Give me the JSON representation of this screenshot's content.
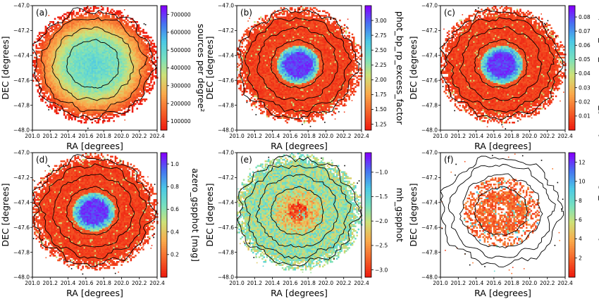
{
  "chart_data": [
    {
      "type": "heatmap",
      "panel_label": "(a)",
      "xlabel": "RA [degrees]",
      "ylabel": "DEC [degrees]",
      "cbar_label": "sources per degree²",
      "x_ticks": [
        "201.0",
        "201.2",
        "201.4",
        "201.6",
        "201.8",
        "202.0",
        "202.2",
        "202.4"
      ],
      "y_ticks": [
        "−47.0",
        "−47.2",
        "−47.4",
        "−47.6",
        "−47.8",
        "−48.0"
      ],
      "cbar_ticks": [
        "100000",
        "200000",
        "300000",
        "400000",
        "500000",
        "600000",
        "700000"
      ],
      "xlim": [
        201.0,
        202.4
      ],
      "ylim": [
        -48.0,
        -47.0
      ],
      "cbar_range": [
        50000,
        750000
      ],
      "colormap": "rainbow",
      "center": [
        201.68,
        -47.47
      ],
      "profile": "decreasing-outward",
      "contours": true
    },
    {
      "type": "heatmap",
      "panel_label": "(b)",
      "xlabel": "RA [degrees]",
      "ylabel": "DEC [degrees]",
      "cbar_label": "phot_bp_rp_excess_factor",
      "x_ticks": [
        "201.0",
        "201.2",
        "201.4",
        "201.6",
        "201.8",
        "202.0",
        "202.2",
        "202.4"
      ],
      "y_ticks": [
        "−47.0",
        "−47.2",
        "−47.4",
        "−47.6",
        "−47.8",
        "−48.0"
      ],
      "cbar_ticks": [
        "1.25",
        "1.50",
        "1.75",
        "2.00",
        "2.25",
        "2.50",
        "2.75",
        "3.00"
      ],
      "xlim": [
        201.0,
        202.4
      ],
      "ylim": [
        -48.0,
        -47.0
      ],
      "cbar_range": [
        1.15,
        3.25
      ],
      "colormap": "rainbow",
      "center": [
        201.68,
        -47.47
      ],
      "profile": "central-peak",
      "contours": true
    },
    {
      "type": "heatmap",
      "panel_label": "(c)",
      "xlabel": "RA [degrees]",
      "ylabel": "DEC [degrees]",
      "cbar_label": "classprob_dsc_combmod_galaxy",
      "x_ticks": [
        "201.0",
        "201.2",
        "201.4",
        "201.6",
        "201.8",
        "202.0",
        "202.2",
        "202.4"
      ],
      "y_ticks": [
        "−47.0",
        "−47.2",
        "−47.4",
        "−47.6",
        "−47.8",
        "−48.0"
      ],
      "cbar_ticks": [
        "0.01",
        "0.02",
        "0.03",
        "0.04",
        "0.05",
        "0.06",
        "0.07",
        "0.08"
      ],
      "xlim": [
        201.0,
        202.4
      ],
      "ylim": [
        -48.0,
        -47.0
      ],
      "cbar_range": [
        0.0,
        0.088
      ],
      "colormap": "rainbow",
      "center": [
        201.68,
        -47.47
      ],
      "profile": "central-peak",
      "contours": true
    },
    {
      "type": "heatmap",
      "panel_label": "(d)",
      "xlabel": "RA [degrees]",
      "ylabel": "DEC [degrees]",
      "cbar_label": "azero_gspphot [mag]",
      "x_ticks": [
        "201.0",
        "201.2",
        "201.4",
        "201.6",
        "201.8",
        "202.0",
        "202.2",
        "202.4"
      ],
      "y_ticks": [
        "−47.0",
        "−47.2",
        "−47.4",
        "−47.6",
        "−47.8",
        "−48.0"
      ],
      "cbar_ticks": [
        "0.2",
        "0.4",
        "0.6",
        "0.8",
        "1.0"
      ],
      "xlim": [
        201.0,
        202.4
      ],
      "ylim": [
        -48.0,
        -47.0
      ],
      "cbar_range": [
        0.0,
        1.1
      ],
      "colormap": "rainbow",
      "center": [
        201.68,
        -47.47
      ],
      "profile": "central-peak",
      "contours": true
    },
    {
      "type": "heatmap",
      "panel_label": "(e)",
      "xlabel": "RA [degrees]",
      "ylabel": "DEC [degrees]",
      "cbar_label": "mh_gspphot",
      "x_ticks": [
        "201.0",
        "201.2",
        "201.4",
        "201.6",
        "201.8",
        "202.0",
        "202.2",
        "202.4"
      ],
      "y_ticks": [
        "−47.0",
        "−47.2",
        "−47.4",
        "−47.6",
        "−47.8",
        "−48.0"
      ],
      "cbar_ticks": [
        "−3.0",
        "−2.5",
        "−2.0",
        "−1.5",
        "−1.0"
      ],
      "xlim": [
        201.0,
        202.4
      ],
      "ylim": [
        -48.0,
        -47.0
      ],
      "cbar_range": [
        -3.15,
        -0.6
      ],
      "colormap": "rainbow",
      "center": [
        201.68,
        -47.47
      ],
      "profile": "low-center-high-outskirts",
      "contours": true
    },
    {
      "type": "heatmap",
      "panel_label": "(f)",
      "xlabel": "RA [degrees]",
      "ylabel": "DEC [degrees]",
      "cbar_label": "age_flame [Gyr]",
      "x_ticks": [
        "201.0",
        "201.2",
        "201.4",
        "201.6",
        "201.8",
        "202.0",
        "202.2",
        "202.4"
      ],
      "y_ticks": [
        "−47.0",
        "−47.2",
        "−47.4",
        "−47.6",
        "−47.8",
        "−48.0"
      ],
      "cbar_ticks": [
        "2",
        "4",
        "6",
        "8",
        "10",
        "12"
      ],
      "xlim": [
        201.0,
        202.4
      ],
      "ylim": [
        -48.0,
        -47.0
      ],
      "cbar_range": [
        0.0,
        13.0
      ],
      "colormap": "rainbow",
      "center": [
        201.68,
        -47.47
      ],
      "profile": "sparse-orange",
      "contours": true
    }
  ]
}
